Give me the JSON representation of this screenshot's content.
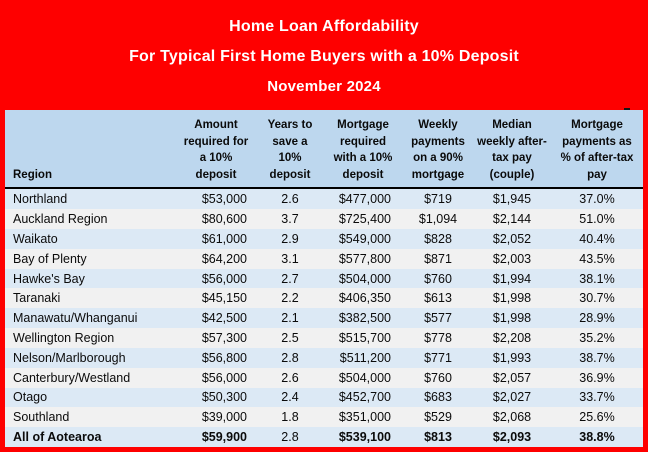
{
  "title": {
    "line1": "Home Loan Affordability",
    "line2": "For Typical First Home Buyers with a 10% Deposit",
    "line3": "November 2024"
  },
  "colors": {
    "band_red": "#fe0000",
    "header_blue": "#bdd7ee",
    "row_blue": "#dce9f5",
    "row_gray": "#f1f1f1",
    "title_text": "#ffffff",
    "body_text": "#0b0b0b"
  },
  "chart_data": {
    "type": "table",
    "title": "Home Loan Affordability For Typical First Home Buyers with a 10% Deposit — November 2024",
    "columns": [
      "Region",
      "Amount\nrequired for\na 10%\ndeposit",
      "Years to\nsave a\n10%\ndeposit",
      "Mortgage\nrequired\nwith a 10%\ndeposit",
      "Weekly\npayments\non a 90%\nmortgage",
      "Median\nweekly after-\ntax pay\n(couple)",
      "Mortgage\npayments as\n% of after-tax\npay"
    ],
    "rows": [
      {
        "cells": [
          "Northland",
          "$53,000",
          "2.6",
          "$477,000",
          "$719",
          "$1,945",
          "37.0%"
        ],
        "emphasis": false
      },
      {
        "cells": [
          "Auckland Region",
          "$80,600",
          "3.7",
          "$725,400",
          "$1,094",
          "$2,144",
          "51.0%"
        ],
        "emphasis": false
      },
      {
        "cells": [
          "Waikato",
          "$61,000",
          "2.9",
          "$549,000",
          "$828",
          "$2,052",
          "40.4%"
        ],
        "emphasis": false
      },
      {
        "cells": [
          "Bay of Plenty",
          "$64,200",
          "3.1",
          "$577,800",
          "$871",
          "$2,003",
          "43.5%"
        ],
        "emphasis": false
      },
      {
        "cells": [
          "Hawke's Bay",
          "$56,000",
          "2.7",
          "$504,000",
          "$760",
          "$1,994",
          "38.1%"
        ],
        "emphasis": false
      },
      {
        "cells": [
          "Taranaki",
          "$45,150",
          "2.2",
          "$406,350",
          "$613",
          "$1,998",
          "30.7%"
        ],
        "emphasis": false
      },
      {
        "cells": [
          "Manawatu/Whanganui",
          "$42,500",
          "2.1",
          "$382,500",
          "$577",
          "$1,998",
          "28.9%"
        ],
        "emphasis": false
      },
      {
        "cells": [
          "Wellington Region",
          "$57,300",
          "2.5",
          "$515,700",
          "$778",
          "$2,208",
          "35.2%"
        ],
        "emphasis": false
      },
      {
        "cells": [
          "Nelson/Marlborough",
          "$56,800",
          "2.8",
          "$511,200",
          "$771",
          "$1,993",
          "38.7%"
        ],
        "emphasis": false
      },
      {
        "cells": [
          "Canterbury/Westland",
          "$56,000",
          "2.6",
          "$504,000",
          "$760",
          "$2,057",
          "36.9%"
        ],
        "emphasis": false
      },
      {
        "cells": [
          "Otago",
          "$50,300",
          "2.4",
          "$452,700",
          "$683",
          "$2,027",
          "33.7%"
        ],
        "emphasis": false
      },
      {
        "cells": [
          "Southland",
          "$39,000",
          "1.8",
          "$351,000",
          "$529",
          "$2,068",
          "25.6%"
        ],
        "emphasis": false
      },
      {
        "cells": [
          "All of Aotearoa",
          "$59,900",
          "2.8",
          "$539,100",
          "$813",
          "$2,093",
          "38.8%"
        ],
        "emphasis": true
      }
    ]
  }
}
